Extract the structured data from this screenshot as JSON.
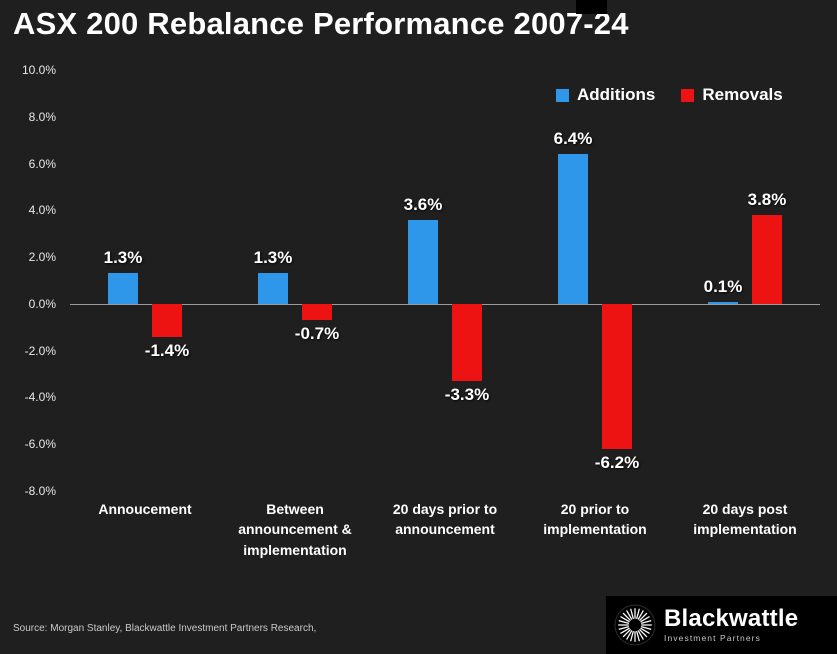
{
  "title": "ASX 200 Rebalance Performance 2007-24",
  "source": "Source: Morgan Stanley, Blackwattle Investment Partners Research,",
  "legend": [
    {
      "label": "Additions",
      "color": "#2e97ea"
    },
    {
      "label": "Removals",
      "color": "#ee1313"
    }
  ],
  "logo": {
    "brand": "Blackwattle",
    "subtitle": "Investment Partners"
  },
  "chart_data": {
    "type": "bar",
    "title": "ASX 200 Rebalance Performance 2007-24",
    "categories": [
      "Annoucement",
      "Between announcement & implementation",
      "20 days prior to announcement",
      "20 prior to implementation",
      "20 days post implementation"
    ],
    "series": [
      {
        "name": "Additions",
        "color": "#2e97ea",
        "values": [
          1.3,
          1.3,
          3.6,
          6.4,
          0.1
        ]
      },
      {
        "name": "Removals",
        "color": "#ee1313",
        "values": [
          -1.4,
          -0.7,
          -3.3,
          -6.2,
          3.8
        ]
      }
    ],
    "ylim": [
      -8,
      10
    ],
    "yticks": [
      "10.0%",
      "8.0%",
      "6.0%",
      "4.0%",
      "2.0%",
      "0.0%",
      "-2.0%",
      "-4.0%",
      "-6.0%",
      "-8.0%"
    ],
    "grid": false,
    "legend_position": "top-right",
    "data_label_format": "0.0%"
  }
}
